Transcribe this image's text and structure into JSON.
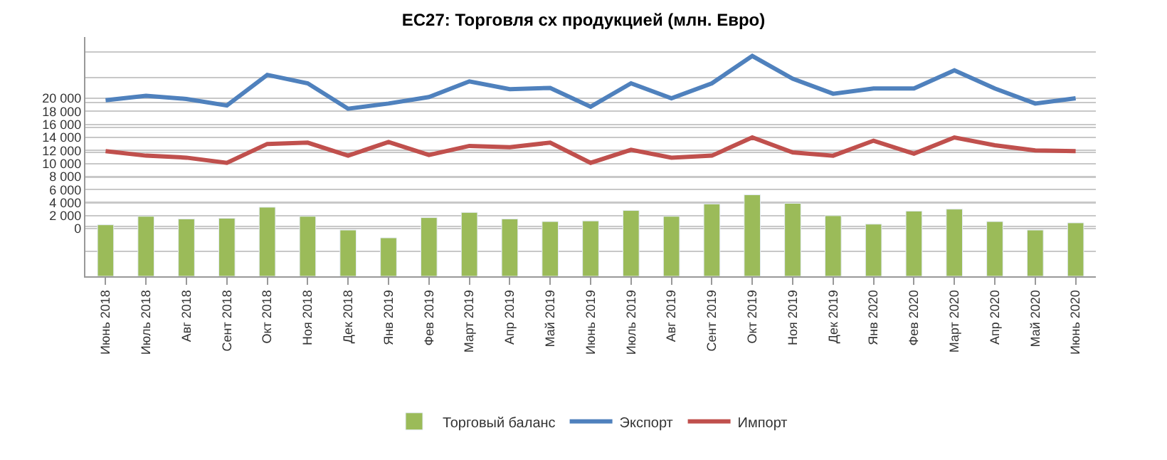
{
  "chart_data": {
    "type": "bar",
    "title": "ЕС27: Торговля сх продукцией (млн. Евро)",
    "categories": [
      "Июнь 2018",
      "Июль 2018",
      "Авг 2018",
      "Сент 2018",
      "Окт 2018",
      "Ноя 2018",
      "Дек 2018",
      "Янв 2019",
      "Фев 2019",
      "Март 2019",
      "Апр 2019",
      "Май 2019",
      "Июнь 2019",
      "Июль 2019",
      "Авг 2019",
      "Сент 2019",
      "Окт 2019",
      "Ноя 2019",
      "Дек 2019",
      "Янв 2020",
      "Фев 2020",
      "Март 2020",
      "Апр 2020",
      "Май 2020",
      "Июнь 2020"
    ],
    "series": [
      {
        "name": "Торговый баланс",
        "color": "#9bbb59",
        "base": [
          -7300,
          -7300,
          -7300,
          -7300,
          -7300,
          -7300,
          -7300,
          -7300,
          -7300,
          -7300,
          -7300,
          -7300,
          -7300,
          -7300,
          -7300,
          -7300,
          -7300,
          -7300,
          -7300,
          -7300,
          -7300,
          -7300,
          -7300,
          -7300,
          -7300
        ],
        "values": [
          7900,
          9200,
          8800,
          8900,
          10600,
          9200,
          7100,
          5900,
          9000,
          9800,
          8800,
          8400,
          8500,
          10100,
          9200,
          11100,
          12500,
          11200,
          9300,
          8000,
          10000,
          10300,
          8400,
          7100,
          8200
        ]
      },
      {
        "name": "Экспорт",
        "type": "line",
        "color": "#4f81bd",
        "values": [
          19700,
          20400,
          19900,
          18900,
          23600,
          22300,
          18400,
          19200,
          20200,
          22600,
          21400,
          21600,
          18700,
          22300,
          20000,
          22300,
          26500,
          23000,
          20700,
          21500,
          21500,
          24300,
          21500,
          19200,
          20000
        ]
      },
      {
        "name": "Импорт",
        "type": "line",
        "color": "#c0504d",
        "values": [
          11900,
          11200,
          10900,
          10100,
          13000,
          13200,
          11200,
          13300,
          11300,
          12700,
          12500,
          13200,
          10100,
          12100,
          10900,
          11200,
          14000,
          11700,
          11200,
          13500,
          11500,
          14000,
          12800,
          12000,
          11900
        ]
      }
    ],
    "ylim": [
      -7300,
      29400
    ],
    "yticks": [
      0,
      {
        "value": 2000,
        "label": "2 000"
      },
      {
        "value": 4000,
        "label": "4 000"
      },
      {
        "value": 6000,
        "label": "6 000"
      },
      {
        "value": 8000,
        "label": "8 000"
      },
      {
        "value": 10000,
        "label": "10 000"
      },
      {
        "value": 12000,
        "label": "12 000"
      },
      {
        "value": 14000,
        "label": "14 000"
      },
      {
        "value": 16000,
        "label": "16 000"
      },
      {
        "value": 18000,
        "label": "18 000"
      },
      {
        "value": 20000,
        "label": "20 000"
      },
      {
        "value": -3500,
        "label": null
      },
      {
        "value": 400,
        "label": null
      },
      {
        "value": 4100,
        "label": null
      },
      {
        "value": 7900,
        "label": null
      },
      {
        "value": 11700,
        "label": null
      },
      {
        "value": 15500,
        "label": null
      },
      {
        "value": 19300,
        "label": null
      },
      {
        "value": 23200,
        "label": null
      },
      {
        "value": 27100,
        "label": null
      }
    ],
    "grid": "y",
    "legend": "bottom",
    "marker": "none",
    "line_style": "solid"
  }
}
